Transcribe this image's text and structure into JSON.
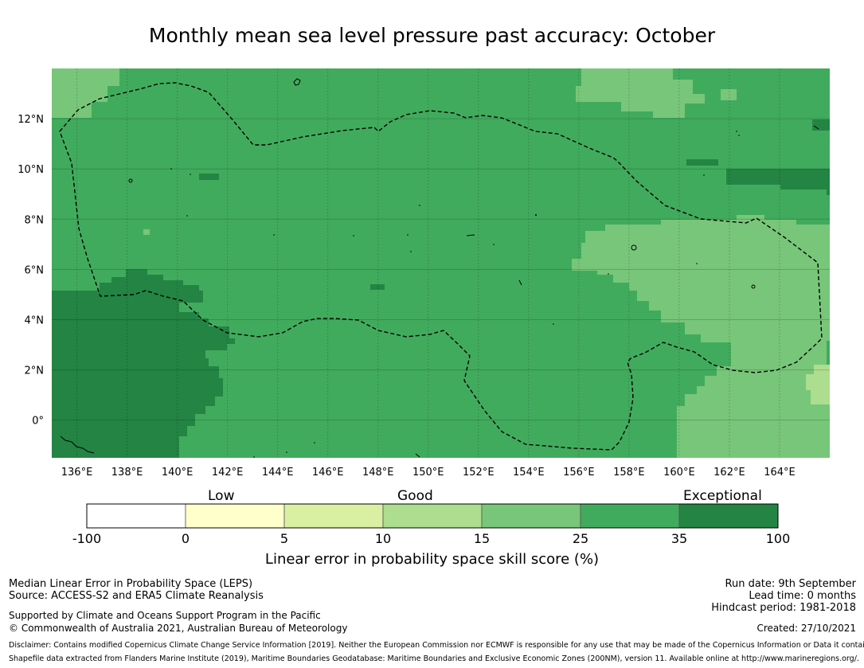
{
  "title": "Monthly mean sea level pressure past accuracy: October",
  "map": {
    "lon_labels": [
      "136°E",
      "138°E",
      "140°E",
      "142°E",
      "144°E",
      "146°E",
      "148°E",
      "150°E",
      "152°E",
      "154°E",
      "156°E",
      "158°E",
      "160°E",
      "162°E",
      "164°E"
    ],
    "lat_labels": [
      "12°N",
      "10°N",
      "8°N",
      "6°N",
      "4°N",
      "2°N",
      "0°"
    ],
    "lon_range": [
      135.0,
      166.0
    ],
    "lat_range": [
      -1.5,
      14.0
    ]
  },
  "colorbar": {
    "categories": [
      "Low",
      "Good",
      "Exceptional"
    ],
    "ticks": [
      "-100",
      "0",
      "5",
      "10",
      "15",
      "25",
      "35",
      "100"
    ],
    "colors": [
      "#ffffff",
      "#ffffcc",
      "#d9f0a3",
      "#addd8e",
      "#78c679",
      "#41ab5d",
      "#238443"
    ],
    "label": "Linear error in probability space skill score (%)"
  },
  "footer": {
    "line1": "Median Linear Error in Probability Space (LEPS)",
    "line2": "Source: ACCESS-S2 and ERA5 Climate Reanalysis",
    "line3": "Supported by Climate and Oceans Support Program in the Pacific",
    "line4": "© Commonwealth of Australia 2021, Australian Bureau of Meteorology",
    "run_date": "Run date: 9th September",
    "lead_time": "Lead time: 0 months",
    "hindcast": "Hindcast period: 1981-2018",
    "created": "Created: 27/10/2021",
    "disclaimer": "Disclaimer: Contains modified Copernicus Climate Change Service Information [2019]. Neither the European Commission nor ECMWF is responsible for any use that may be made of the Copernicus Information or Data it contains.",
    "shapefile": "Shapefile data extracted from Flanders Marine Institute (2019), Maritime Boundaries Geodatabase: Maritime Boundaries and Exclusive Economic Zones (200NM), version 11. Available online at http://www.marineregions.org/."
  }
}
